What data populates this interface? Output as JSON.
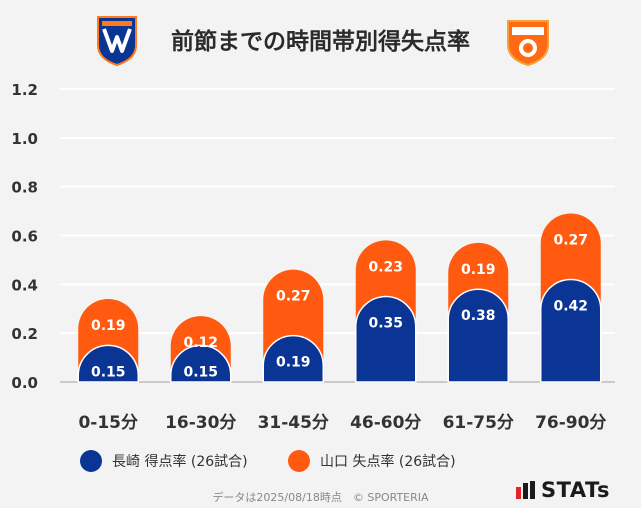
{
  "title": "前節までの時間帯別得失点率",
  "logos": {
    "left_text": "V·VAREN",
    "right_text": "RENOFA"
  },
  "chart_data": {
    "type": "bar",
    "stacked": true,
    "categories": [
      "0-15分",
      "16-30分",
      "31-45分",
      "46-60分",
      "61-75分",
      "76-90分"
    ],
    "series": [
      {
        "name": "長崎 得点率 (26試合)",
        "color": "#0a3594",
        "values": [
          0.15,
          0.15,
          0.19,
          0.35,
          0.38,
          0.42
        ]
      },
      {
        "name": "山口 失点率 (26試合)",
        "color": "#ff5a0f",
        "values": [
          0.19,
          0.12,
          0.27,
          0.23,
          0.19,
          0.27
        ]
      }
    ],
    "y_ticks": [
      "0.0",
      "0.2",
      "0.4",
      "0.6",
      "0.8",
      "1.0",
      "1.2"
    ],
    "ylim": [
      0,
      1.2
    ],
    "grid": true,
    "legend_position": "bottom"
  },
  "footer": "データは2025/08/18時点　© SPORTERIA",
  "brand": "STATs"
}
